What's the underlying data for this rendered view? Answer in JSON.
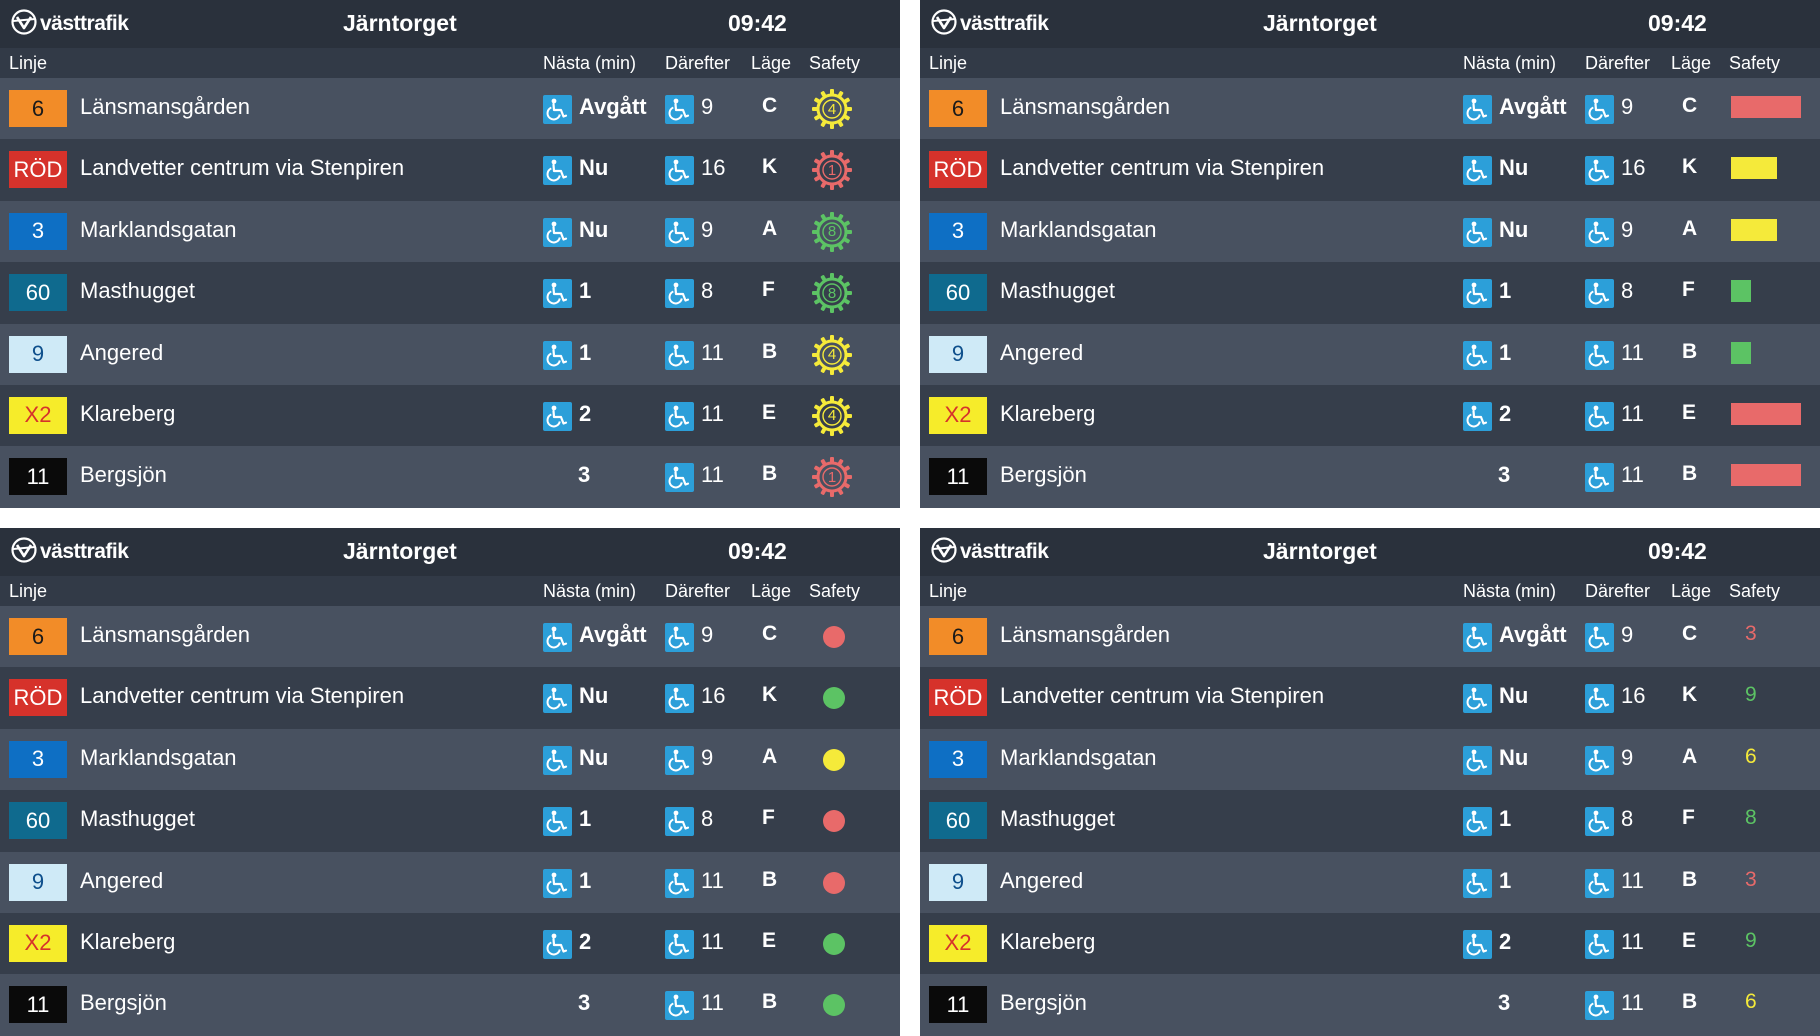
{
  "brand": "västtrafik",
  "stop": "Järntorget",
  "time": "09:42",
  "columns": {
    "line": "Linje",
    "next": "Nästa (min)",
    "after": "Därefter",
    "platform": "Läge",
    "safety": "Safety"
  },
  "colors": {
    "panel_bg": "#323a47",
    "row_light": "#485160",
    "row_dark": "#363e4b",
    "wheelchair_icon_bg": "#2c9fd9",
    "safety_red": "#e86a6a",
    "safety_yellow": "#f5ea3a",
    "safety_green": "#5cc364"
  },
  "departures": [
    {
      "line": "6",
      "badge_bg": "#f28c28",
      "badge_fg": "#1a1a1a",
      "destination": "Länsmansgården",
      "next": "Avgått",
      "next_accessible": true,
      "after": "9",
      "after_accessible": true,
      "platform": "C"
    },
    {
      "line": "RÖD",
      "badge_bg": "#d6322b",
      "badge_fg": "#ffffff",
      "destination": "Landvetter centrum via Stenpiren",
      "next": "Nu",
      "next_accessible": true,
      "after": "16",
      "after_accessible": true,
      "platform": "K"
    },
    {
      "line": "3",
      "badge_bg": "#0e6fc4",
      "badge_fg": "#ffffff",
      "destination": "Marklandsgatan",
      "next": "Nu",
      "next_accessible": true,
      "after": "9",
      "after_accessible": true,
      "platform": "A"
    },
    {
      "line": "60",
      "badge_bg": "#0f6a8e",
      "badge_fg": "#ffffff",
      "destination": "Masthugget",
      "next": "1",
      "next_accessible": true,
      "after": "8",
      "after_accessible": true,
      "platform": "F"
    },
    {
      "line": "9",
      "badge_bg": "#cfeaf7",
      "badge_fg": "#0e4f8c",
      "destination": "Angered",
      "next": "1",
      "next_accessible": true,
      "after": "11",
      "after_accessible": true,
      "platform": "B"
    },
    {
      "line": "X2",
      "badge_bg": "#f6ec2a",
      "badge_fg": "#d6322b",
      "destination": "Klareberg",
      "next": "2",
      "next_accessible": true,
      "after": "11",
      "after_accessible": true,
      "platform": "E"
    },
    {
      "line": "11",
      "badge_bg": "#0a0a0a",
      "badge_fg": "#ffffff",
      "destination": "Bergsjön",
      "next": "3",
      "next_accessible": false,
      "after": "11",
      "after_accessible": true,
      "platform": "B"
    }
  ],
  "safety_variants": [
    {
      "style": "gear",
      "items": [
        {
          "value": "4",
          "color": "#f5ea3a"
        },
        {
          "value": "1",
          "color": "#e86a6a"
        },
        {
          "value": "8",
          "color": "#5cc364"
        },
        {
          "value": "8",
          "color": "#5cc364"
        },
        {
          "value": "4",
          "color": "#f5ea3a"
        },
        {
          "value": "4",
          "color": "#f5ea3a"
        },
        {
          "value": "1",
          "color": "#e86a6a"
        }
      ]
    },
    {
      "style": "bar",
      "items": [
        {
          "level": 1.0,
          "color": "#e86a6a"
        },
        {
          "level": 0.65,
          "color": "#f5ea3a"
        },
        {
          "level": 0.65,
          "color": "#f5ea3a"
        },
        {
          "level": 0.28,
          "color": "#5cc364"
        },
        {
          "level": 0.28,
          "color": "#5cc364"
        },
        {
          "level": 1.0,
          "color": "#e86a6a"
        },
        {
          "level": 1.0,
          "color": "#e86a6a"
        }
      ]
    },
    {
      "style": "dot",
      "items": [
        {
          "color": "#e86a6a"
        },
        {
          "color": "#5cc364"
        },
        {
          "color": "#f5ea3a"
        },
        {
          "color": "#e86a6a"
        },
        {
          "color": "#e86a6a"
        },
        {
          "color": "#5cc364"
        },
        {
          "color": "#5cc364"
        }
      ]
    },
    {
      "style": "number",
      "items": [
        {
          "value": "3",
          "color": "#e86a6a"
        },
        {
          "value": "9",
          "color": "#5cc364"
        },
        {
          "value": "6",
          "color": "#f5ea3a"
        },
        {
          "value": "8",
          "color": "#5cc364"
        },
        {
          "value": "3",
          "color": "#e86a6a"
        },
        {
          "value": "9",
          "color": "#5cc364"
        },
        {
          "value": "6",
          "color": "#f5ea3a"
        }
      ]
    }
  ]
}
